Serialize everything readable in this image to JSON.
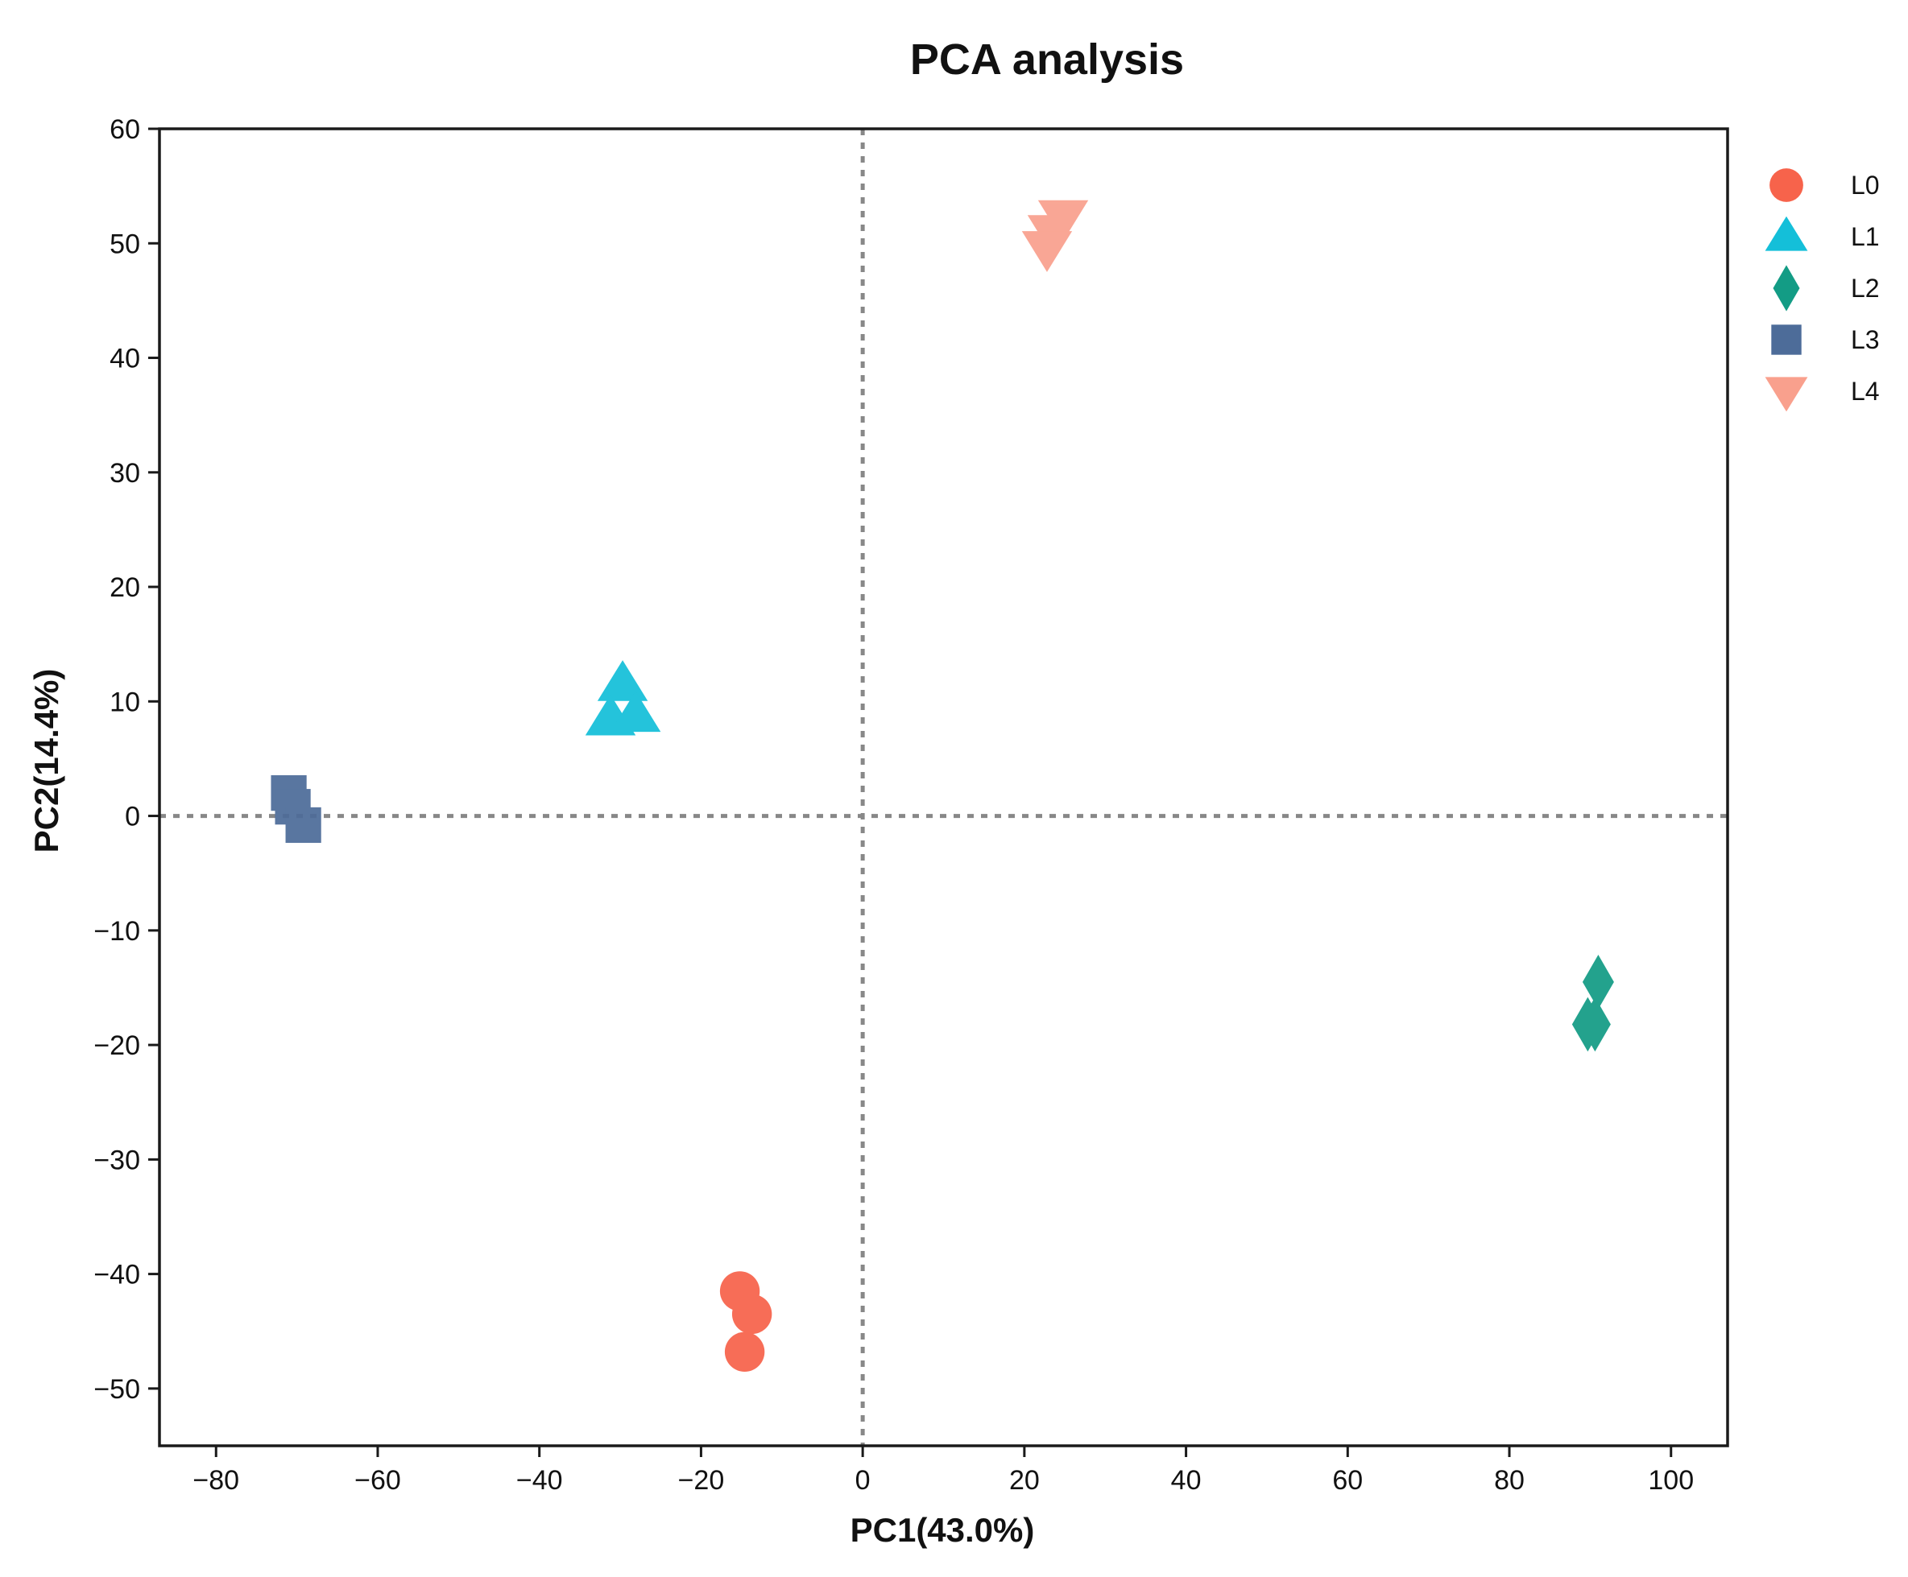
{
  "chart_data": {
    "type": "scatter",
    "title": "PCA analysis",
    "xlabel": "PC1(43.0%)",
    "ylabel": "PC2(14.4%)",
    "xlim": [
      -87,
      107
    ],
    "ylim": [
      -55,
      60
    ],
    "xticks": [
      -80,
      -60,
      -40,
      -20,
      0,
      20,
      40,
      60,
      80,
      100
    ],
    "yticks": [
      -50,
      -40,
      -30,
      -20,
      -10,
      0,
      10,
      20,
      30,
      40,
      50,
      60
    ],
    "xtick_labels": [
      "−80",
      "−60",
      "−40",
      "−20",
      "0",
      "20",
      "40",
      "60",
      "80",
      "100"
    ],
    "ytick_labels": [
      "−50",
      "−40",
      "−30",
      "−20",
      "−10",
      "0",
      "10",
      "20",
      "30",
      "40",
      "50",
      "60"
    ],
    "reference_lines": {
      "x": 0,
      "y": 0,
      "style": "dotted"
    },
    "legend_position": "right",
    "series": [
      {
        "name": "L0",
        "marker": "circle",
        "color": "#F7634B",
        "points": [
          {
            "x": -15.2,
            "y": -41.5
          },
          {
            "x": -13.7,
            "y": -43.5
          },
          {
            "x": -14.6,
            "y": -46.8
          }
        ]
      },
      {
        "name": "L1",
        "marker": "triangle-up",
        "color": "#14BFD9",
        "points": [
          {
            "x": -29.7,
            "y": 11.5
          },
          {
            "x": -31.2,
            "y": 8.5
          },
          {
            "x": -28.1,
            "y": 8.8
          }
        ]
      },
      {
        "name": "L2",
        "marker": "diamond",
        "color": "#139C85",
        "points": [
          {
            "x": 91.0,
            "y": -14.5
          },
          {
            "x": 89.7,
            "y": -18.2
          },
          {
            "x": 90.6,
            "y": -18.2
          }
        ]
      },
      {
        "name": "L3",
        "marker": "square",
        "color": "#4D6C99",
        "points": [
          {
            "x": -71.0,
            "y": 2.0
          },
          {
            "x": -70.5,
            "y": 0.8
          },
          {
            "x": -69.2,
            "y": -0.8
          }
        ]
      },
      {
        "name": "L4",
        "marker": "triangle-down",
        "color": "#F9A08D",
        "points": [
          {
            "x": 24.8,
            "y": 52.3
          },
          {
            "x": 23.5,
            "y": 51.0
          },
          {
            "x": 22.8,
            "y": 49.6
          }
        ]
      }
    ]
  }
}
